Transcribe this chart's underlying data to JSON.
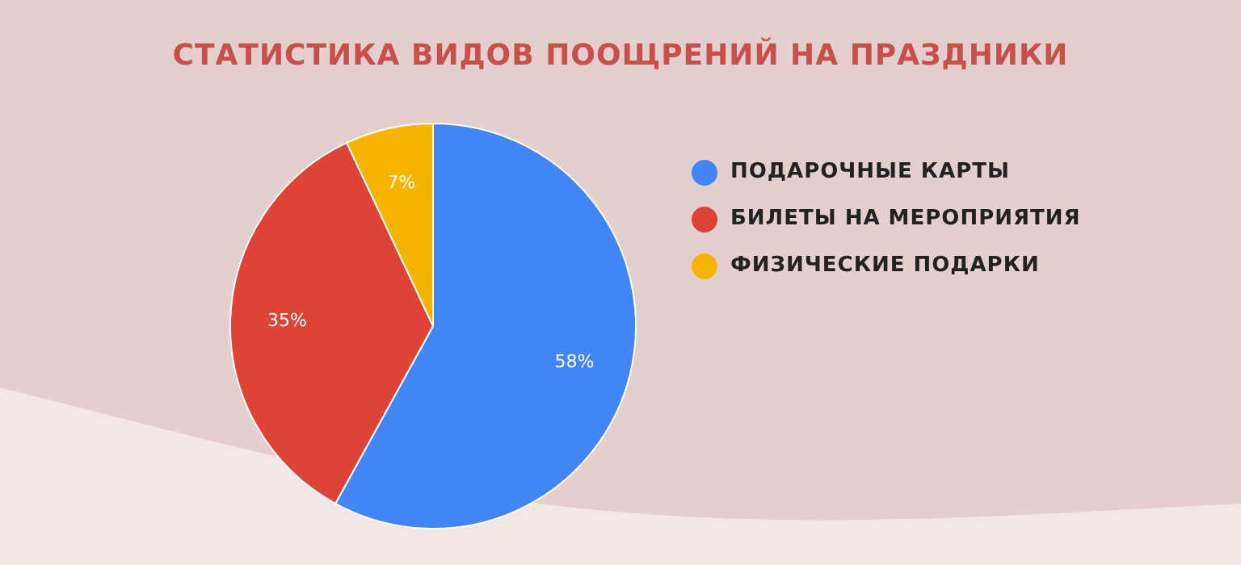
{
  "chart_data": {
    "type": "pie",
    "title": "СТАТИСТИКА ВИДОВ ПООЩРЕНИЙ НА ПРАЗДНИКИ",
    "categories": [
      "ПОДАРОЧНЫЕ КАРТЫ",
      "БИЛЕТЫ НА МЕРОПРИЯТИЯ",
      "ФИЗИЧЕСКИЕ ПОДАРКИ"
    ],
    "values": [
      58,
      35,
      7
    ],
    "colors": [
      "#4285f4",
      "#db4437",
      "#f4b400"
    ],
    "value_labels": [
      "58%",
      "35%",
      "7%"
    ],
    "legend": "right"
  }
}
